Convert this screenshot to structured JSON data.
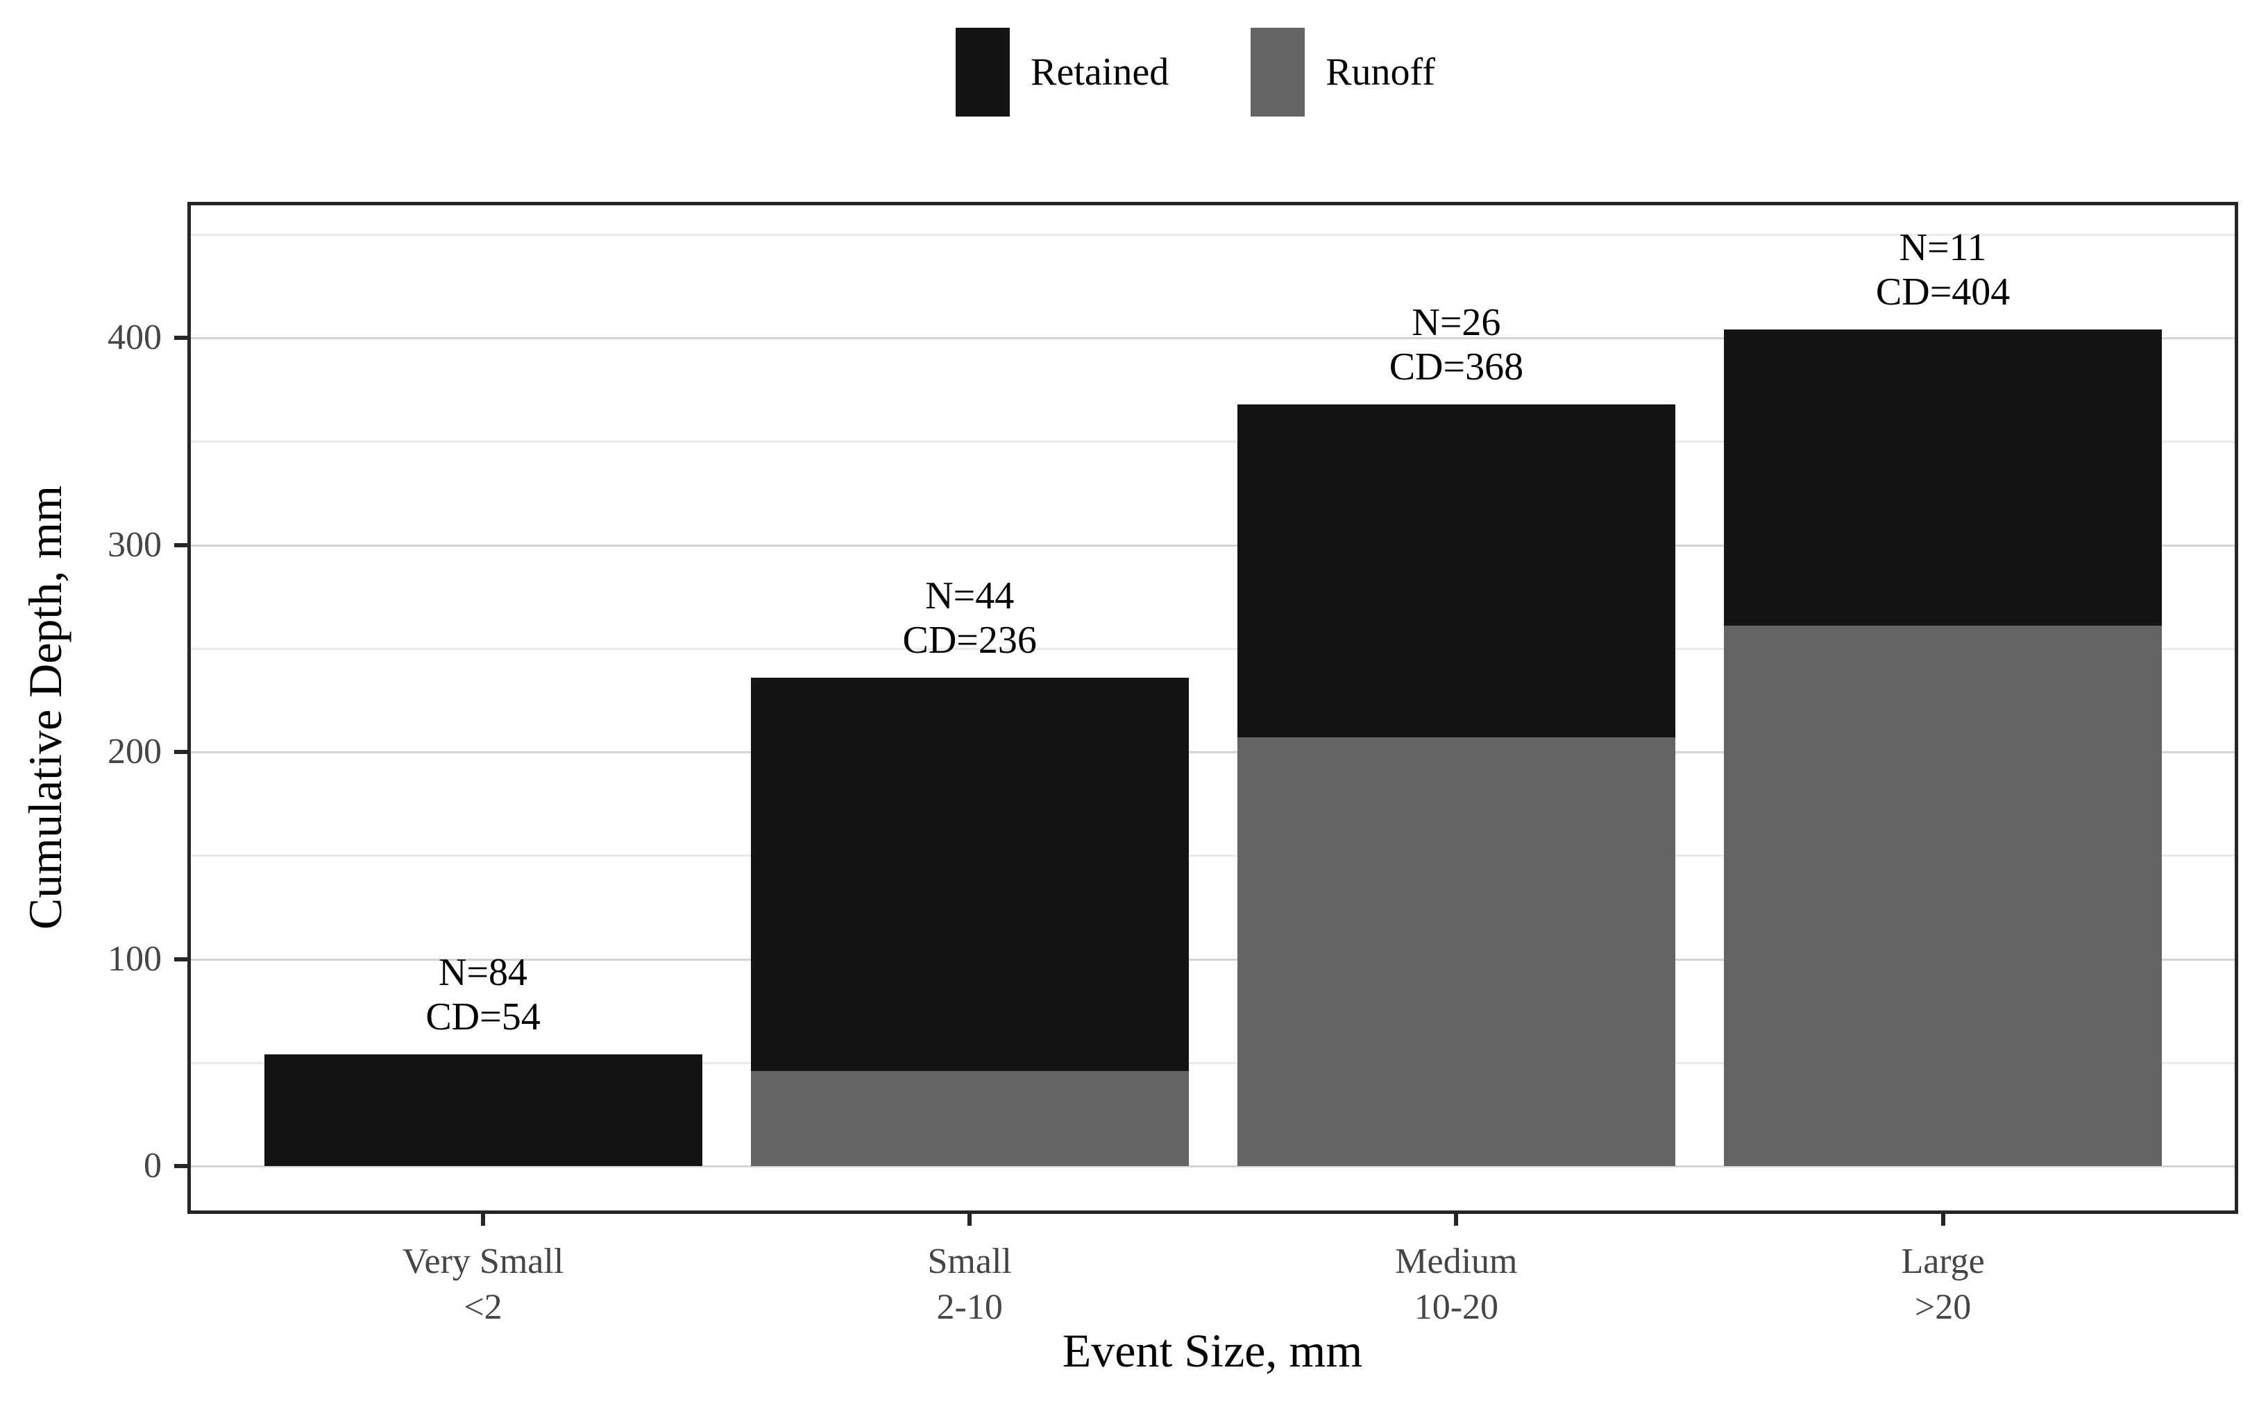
{
  "legend": {
    "items": [
      {
        "label": "Retained",
        "color": "#141414"
      },
      {
        "label": "Runoff",
        "color": "#646464"
      }
    ]
  },
  "colors": {
    "retained": "#141414",
    "runoff": "#646464",
    "grid_major": "#d4d4d4",
    "grid_minor": "#ebebeb",
    "panel_border": "#262626",
    "tick_label": "#454545",
    "axis_title": "#000000"
  },
  "chart_data": {
    "type": "bar",
    "stacked": true,
    "xlabel": "Event Size, mm",
    "ylabel": "Cumulative Depth, mm",
    "categories": [
      {
        "name": "Very Small",
        "range": "<2"
      },
      {
        "name": "Small",
        "range": "2-10"
      },
      {
        "name": "Medium",
        "range": "10-20"
      },
      {
        "name": "Large",
        "range": ">20"
      }
    ],
    "series": [
      {
        "name": "Runoff",
        "values": [
          0,
          46,
          207,
          261
        ]
      },
      {
        "name": "Retained",
        "values": [
          54,
          190,
          161,
          143
        ]
      }
    ],
    "totals": [
      54,
      236,
      368,
      404
    ],
    "n_events": [
      84,
      44,
      26,
      11
    ],
    "annotations": [
      {
        "line1": "N=84",
        "line2": "CD=54"
      },
      {
        "line1": "N=44",
        "line2": "CD=236"
      },
      {
        "line1": "N=26",
        "line2": "CD=368"
      },
      {
        "line1": "N=11",
        "line2": "CD=404"
      }
    ],
    "y_ticks": [
      0,
      100,
      200,
      300,
      400
    ],
    "y_minor": [
      50,
      150,
      250,
      350,
      450
    ],
    "ylim": [
      -21,
      464
    ],
    "grid": "horizontal",
    "legend_position": "top"
  }
}
